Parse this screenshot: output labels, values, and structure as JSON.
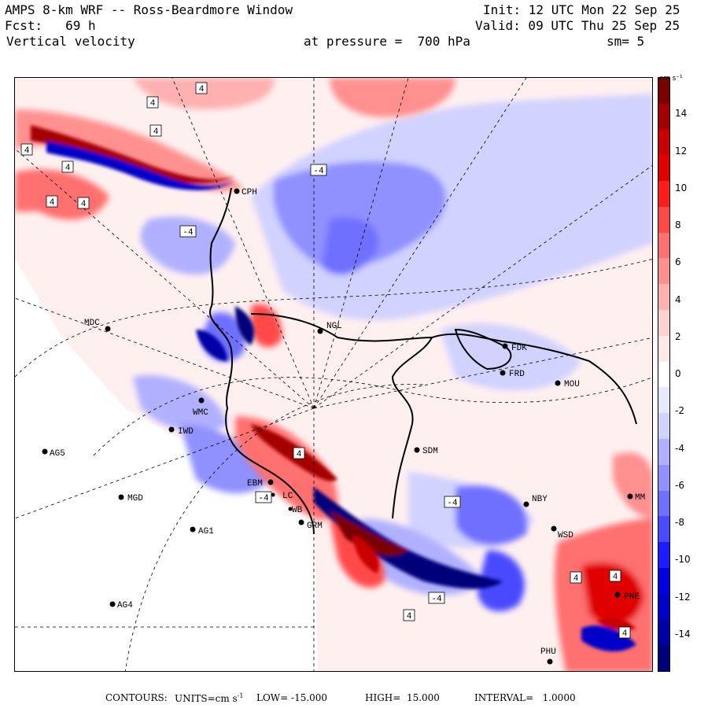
{
  "header": {
    "title": "AMPS 8-km WRF -- Ross-Beardmore Window",
    "init": "Init: 12 UTC Mon 22 Sep 25",
    "forecast": "Fcst:   69 h",
    "valid": "Valid: 09 UTC Thu 25 Sep 25",
    "field": "Vertical velocity",
    "level": "at pressure =  700 hPa",
    "smoothing": "sm= 5"
  },
  "colorbar": {
    "unit": "cm s⁻¹",
    "labels": [
      "14",
      "12",
      "10",
      "8",
      "6",
      "4",
      "2",
      "0",
      "-2",
      "-4",
      "-6",
      "-8",
      "-10",
      "-12",
      "-14"
    ],
    "colors": [
      "#7a0000",
      "#a40000",
      "#c80000",
      "#e00000",
      "#ff1c1c",
      "#ff4a4a",
      "#ff7070",
      "#ff9090",
      "#ffb0b0",
      "#ffd2d2",
      "#ffe8e8",
      "#ffffff",
      "#e8e8ff",
      "#d2d2ff",
      "#b0b0ff",
      "#9090ff",
      "#7070ff",
      "#4a4aff",
      "#1c1cff",
      "#0000e0",
      "#0000c8",
      "#0000a4",
      "#00007a"
    ]
  },
  "stations": [
    {
      "id": "CPH",
      "label": "CPH"
    },
    {
      "id": "MDC",
      "label": "MDC"
    },
    {
      "id": "NGL",
      "label": "NGL"
    },
    {
      "id": "FDK",
      "label": "FDK"
    },
    {
      "id": "FRD",
      "label": "FRD"
    },
    {
      "id": "MOU",
      "label": "MOU"
    },
    {
      "id": "WMC",
      "label": "WMC"
    },
    {
      "id": "IWD",
      "label": "IWD"
    },
    {
      "id": "AG5",
      "label": "AG5"
    },
    {
      "id": "SDM",
      "label": "SDM"
    },
    {
      "id": "EBM",
      "label": "EBM"
    },
    {
      "id": "MGD",
      "label": "MGD"
    },
    {
      "id": "NBY",
      "label": "NBY"
    },
    {
      "id": "AG1",
      "label": "AG1"
    },
    {
      "id": "GRM",
      "label": "GRM"
    },
    {
      "id": "WSD",
      "label": "WSD"
    },
    {
      "id": "AG4",
      "label": "AG4"
    },
    {
      "id": "PNE",
      "label": "PNE"
    },
    {
      "id": "PHU",
      "label": "PHU"
    },
    {
      "id": "NMM",
      "label": "MM"
    },
    {
      "id": "LC",
      "label": "LC"
    },
    {
      "id": "WB",
      "label": "WB"
    }
  ],
  "contour_labels": [
    "4",
    "4",
    "4",
    "4",
    "4",
    "4",
    "4",
    "-4",
    "-4",
    "4",
    "-4",
    "-4",
    "-4",
    "4",
    "4",
    "4",
    "4"
  ],
  "footer": {
    "contours": "CONTOURS:",
    "units_prefix": "UNITS=cm s",
    "units_exp": "-1",
    "low": "LOW= -15.000",
    "high": "HIGH=  15.000",
    "interval": "INTERVAL=   1.0000"
  }
}
